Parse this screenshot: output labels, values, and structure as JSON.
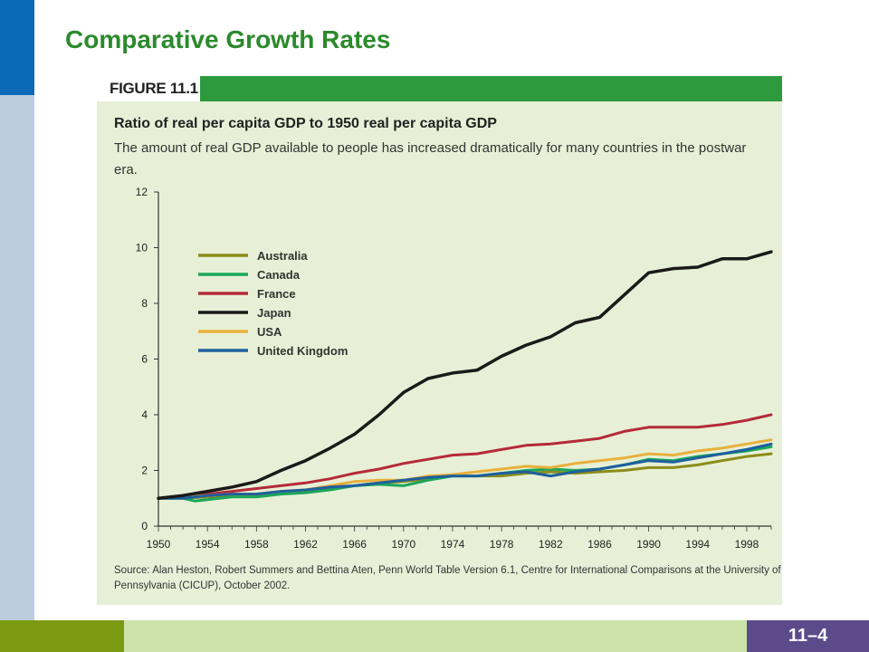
{
  "slide": {
    "title": "Comparative Growth Rates",
    "page_number": "11–4"
  },
  "figure": {
    "label": "FIGURE 11.1",
    "heading": "Ratio of real per capita GDP to 1950 real per capita GDP",
    "description": "The amount of real GDP available to people has increased dramatically for many countries in the postwar era.",
    "source": "Source: Alan Heston, Robert Summers and Bettina Aten, Penn World Table Version 6.1, Centre for International Comparisons at the University of Pennsylvania (CICUP), October 2002."
  },
  "colors": {
    "Australia": "#8c8c1a",
    "Canada": "#1aa65a",
    "France": "#b52a3a",
    "Japan": "#1a1a1a",
    "USA": "#e8b03c",
    "United Kingdom": "#1f5f9e"
  },
  "chart_data": {
    "type": "line",
    "title": "",
    "xlabel": "",
    "ylabel": "",
    "xlim": [
      1950,
      2000
    ],
    "ylim": [
      0,
      12
    ],
    "x_ticks": [
      "1950",
      "1954",
      "1958",
      "1962",
      "1966",
      "1970",
      "1974",
      "1978",
      "1982",
      "1986",
      "1990",
      "1994",
      "1998"
    ],
    "y_ticks": [
      "0",
      "2",
      "4",
      "6",
      "8",
      "10",
      "12"
    ],
    "grid": false,
    "legend_position": "top-left",
    "series": [
      {
        "name": "Australia",
        "points": [
          [
            1950,
            1.0
          ],
          [
            1952,
            1.0
          ],
          [
            1954,
            1.05
          ],
          [
            1956,
            1.1
          ],
          [
            1958,
            1.1
          ],
          [
            1960,
            1.2
          ],
          [
            1962,
            1.25
          ],
          [
            1964,
            1.35
          ],
          [
            1966,
            1.45
          ],
          [
            1968,
            1.55
          ],
          [
            1970,
            1.6
          ],
          [
            1972,
            1.7
          ],
          [
            1974,
            1.8
          ],
          [
            1976,
            1.8
          ],
          [
            1978,
            1.8
          ],
          [
            1980,
            1.9
          ],
          [
            1982,
            1.95
          ],
          [
            1984,
            1.9
          ],
          [
            1986,
            1.95
          ],
          [
            1988,
            2.0
          ],
          [
            1990,
            2.1
          ],
          [
            1992,
            2.1
          ],
          [
            1994,
            2.2
          ],
          [
            1996,
            2.35
          ],
          [
            1998,
            2.5
          ],
          [
            2000,
            2.6
          ]
        ]
      },
      {
        "name": "Canada",
        "points": [
          [
            1950,
            1.0
          ],
          [
            1952,
            1.0
          ],
          [
            1953,
            0.9
          ],
          [
            1954,
            0.95
          ],
          [
            1956,
            1.05
          ],
          [
            1958,
            1.05
          ],
          [
            1960,
            1.15
          ],
          [
            1962,
            1.2
          ],
          [
            1964,
            1.3
          ],
          [
            1966,
            1.45
          ],
          [
            1968,
            1.5
          ],
          [
            1970,
            1.45
          ],
          [
            1972,
            1.65
          ],
          [
            1974,
            1.8
          ],
          [
            1976,
            1.8
          ],
          [
            1978,
            1.9
          ],
          [
            1980,
            2.0
          ],
          [
            1982,
            2.05
          ],
          [
            1984,
            2.0
          ],
          [
            1986,
            2.05
          ],
          [
            1988,
            2.2
          ],
          [
            1990,
            2.4
          ],
          [
            1992,
            2.35
          ],
          [
            1994,
            2.5
          ],
          [
            1996,
            2.6
          ],
          [
            1998,
            2.7
          ],
          [
            2000,
            2.85
          ]
        ]
      },
      {
        "name": "France",
        "points": [
          [
            1950,
            1.0
          ],
          [
            1952,
            1.05
          ],
          [
            1954,
            1.15
          ],
          [
            1956,
            1.25
          ],
          [
            1958,
            1.35
          ],
          [
            1960,
            1.45
          ],
          [
            1962,
            1.55
          ],
          [
            1964,
            1.7
          ],
          [
            1966,
            1.9
          ],
          [
            1968,
            2.05
          ],
          [
            1970,
            2.25
          ],
          [
            1972,
            2.4
          ],
          [
            1974,
            2.55
          ],
          [
            1976,
            2.6
          ],
          [
            1978,
            2.75
          ],
          [
            1980,
            2.9
          ],
          [
            1982,
            2.95
          ],
          [
            1984,
            3.05
          ],
          [
            1986,
            3.15
          ],
          [
            1988,
            3.4
          ],
          [
            1990,
            3.55
          ],
          [
            1992,
            3.55
          ],
          [
            1994,
            3.55
          ],
          [
            1996,
            3.65
          ],
          [
            1998,
            3.8
          ],
          [
            2000,
            4.0
          ]
        ]
      },
      {
        "name": "Japan",
        "points": [
          [
            1950,
            1.0
          ],
          [
            1952,
            1.1
          ],
          [
            1954,
            1.25
          ],
          [
            1956,
            1.4
          ],
          [
            1958,
            1.6
          ],
          [
            1960,
            2.0
          ],
          [
            1962,
            2.35
          ],
          [
            1964,
            2.8
          ],
          [
            1966,
            3.3
          ],
          [
            1968,
            4.0
          ],
          [
            1970,
            4.8
          ],
          [
            1972,
            5.3
          ],
          [
            1974,
            5.5
          ],
          [
            1976,
            5.6
          ],
          [
            1978,
            6.1
          ],
          [
            1980,
            6.5
          ],
          [
            1982,
            6.8
          ],
          [
            1984,
            7.3
          ],
          [
            1986,
            7.5
          ],
          [
            1988,
            8.3
          ],
          [
            1990,
            9.1
          ],
          [
            1992,
            9.25
          ],
          [
            1994,
            9.3
          ],
          [
            1996,
            9.6
          ],
          [
            1998,
            9.6
          ],
          [
            2000,
            9.85
          ]
        ]
      },
      {
        "name": "USA",
        "points": [
          [
            1950,
            1.0
          ],
          [
            1952,
            1.05
          ],
          [
            1954,
            1.1
          ],
          [
            1956,
            1.15
          ],
          [
            1958,
            1.15
          ],
          [
            1960,
            1.25
          ],
          [
            1962,
            1.3
          ],
          [
            1964,
            1.45
          ],
          [
            1966,
            1.6
          ],
          [
            1968,
            1.65
          ],
          [
            1970,
            1.65
          ],
          [
            1972,
            1.8
          ],
          [
            1974,
            1.85
          ],
          [
            1976,
            1.95
          ],
          [
            1978,
            2.05
          ],
          [
            1980,
            2.15
          ],
          [
            1982,
            2.1
          ],
          [
            1984,
            2.25
          ],
          [
            1986,
            2.35
          ],
          [
            1988,
            2.45
          ],
          [
            1990,
            2.6
          ],
          [
            1992,
            2.55
          ],
          [
            1994,
            2.7
          ],
          [
            1996,
            2.8
          ],
          [
            1998,
            2.95
          ],
          [
            2000,
            3.1
          ]
        ]
      },
      {
        "name": "United Kingdom",
        "points": [
          [
            1950,
            1.0
          ],
          [
            1952,
            1.0
          ],
          [
            1954,
            1.1
          ],
          [
            1956,
            1.15
          ],
          [
            1958,
            1.15
          ],
          [
            1960,
            1.25
          ],
          [
            1962,
            1.3
          ],
          [
            1964,
            1.4
          ],
          [
            1966,
            1.45
          ],
          [
            1968,
            1.55
          ],
          [
            1970,
            1.65
          ],
          [
            1972,
            1.75
          ],
          [
            1974,
            1.8
          ],
          [
            1976,
            1.8
          ],
          [
            1978,
            1.9
          ],
          [
            1980,
            1.95
          ],
          [
            1982,
            1.8
          ],
          [
            1984,
            1.95
          ],
          [
            1986,
            2.05
          ],
          [
            1988,
            2.2
          ],
          [
            1990,
            2.35
          ],
          [
            1992,
            2.3
          ],
          [
            1994,
            2.45
          ],
          [
            1996,
            2.6
          ],
          [
            1998,
            2.75
          ],
          [
            2000,
            2.95
          ]
        ]
      }
    ]
  }
}
